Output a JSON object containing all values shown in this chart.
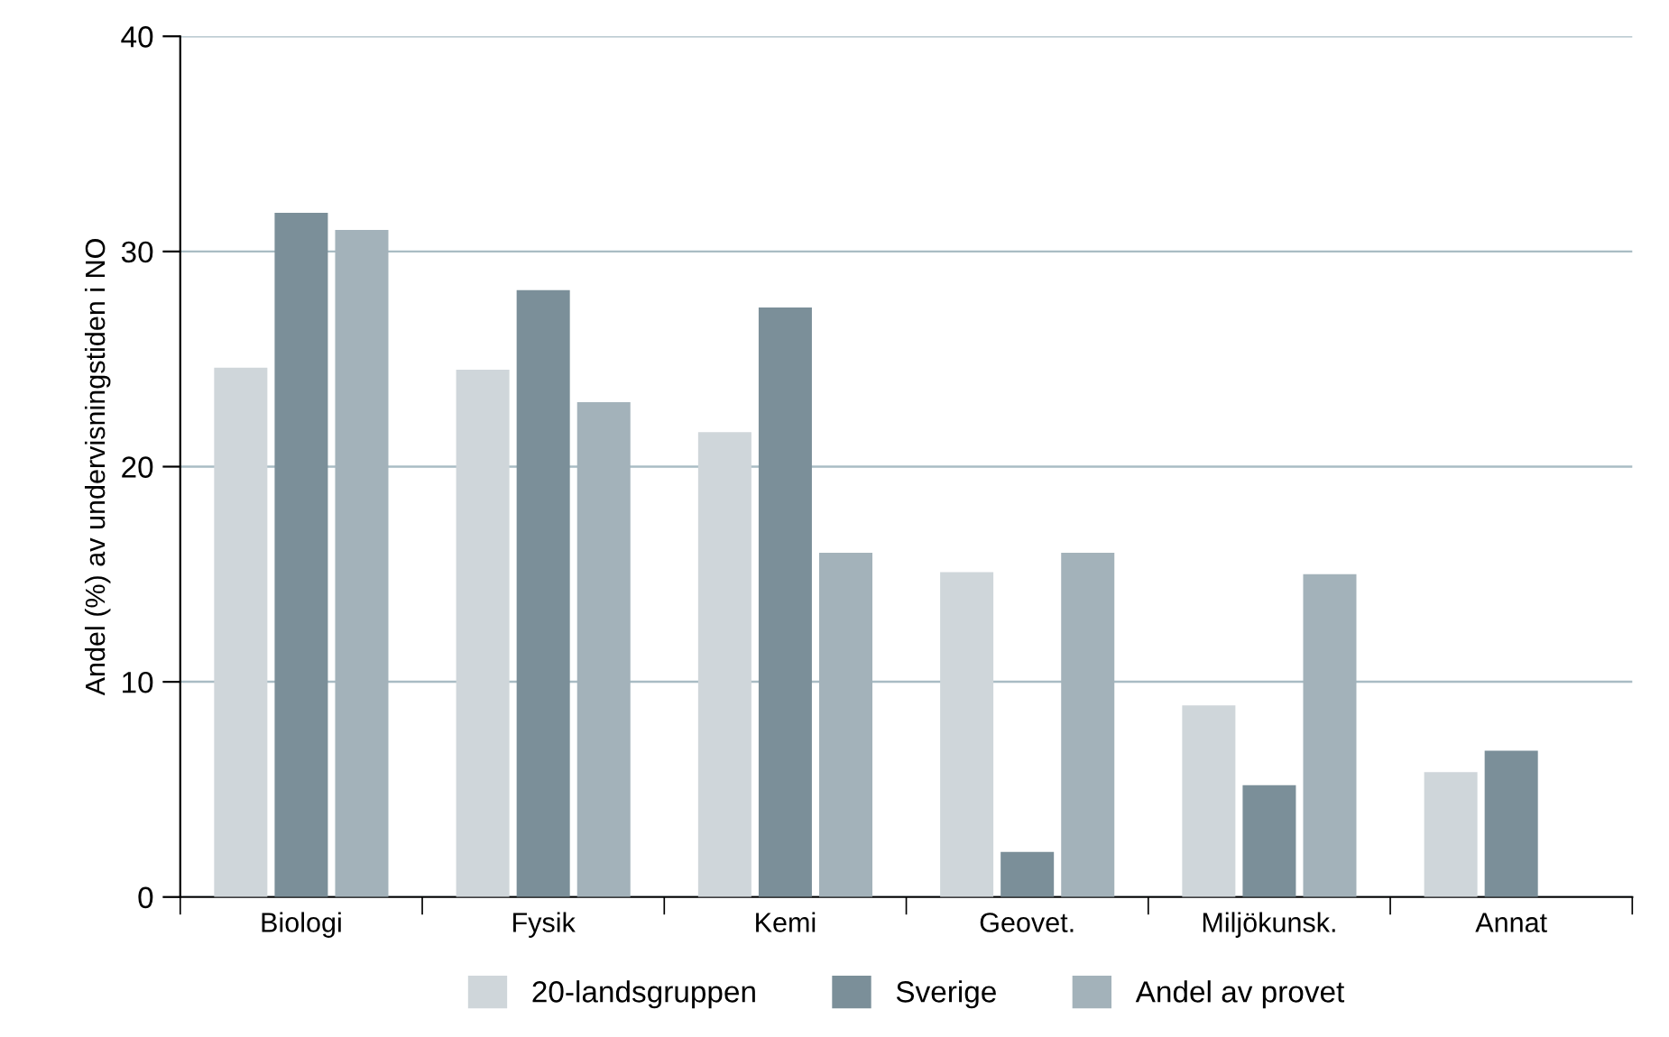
{
  "chart_data": {
    "type": "bar",
    "ylabel": "Andel (%) av undervisningstiden i NO",
    "categories": [
      "Biologi",
      "Fysik",
      "Kemi",
      "Geovet.",
      "Miljökunsk.",
      "Annat"
    ],
    "series": [
      {
        "name": "20-landsgruppen",
        "color": "#cfd6da",
        "values": [
          24.6,
          24.5,
          21.6,
          15.1,
          8.9,
          5.8
        ]
      },
      {
        "name": "Sverige",
        "color": "#7b8f99",
        "values": [
          31.8,
          28.2,
          27.4,
          2.1,
          5.2,
          6.8
        ]
      },
      {
        "name": "Andel av provet",
        "color": "#a3b2ba",
        "values": [
          31.0,
          23.0,
          16.0,
          16.0,
          15.0,
          null
        ]
      }
    ],
    "ylim": [
      0,
      40
    ],
    "yticks": [
      0,
      10,
      20,
      30,
      40
    ],
    "grid": "y",
    "legend": "bottom"
  }
}
